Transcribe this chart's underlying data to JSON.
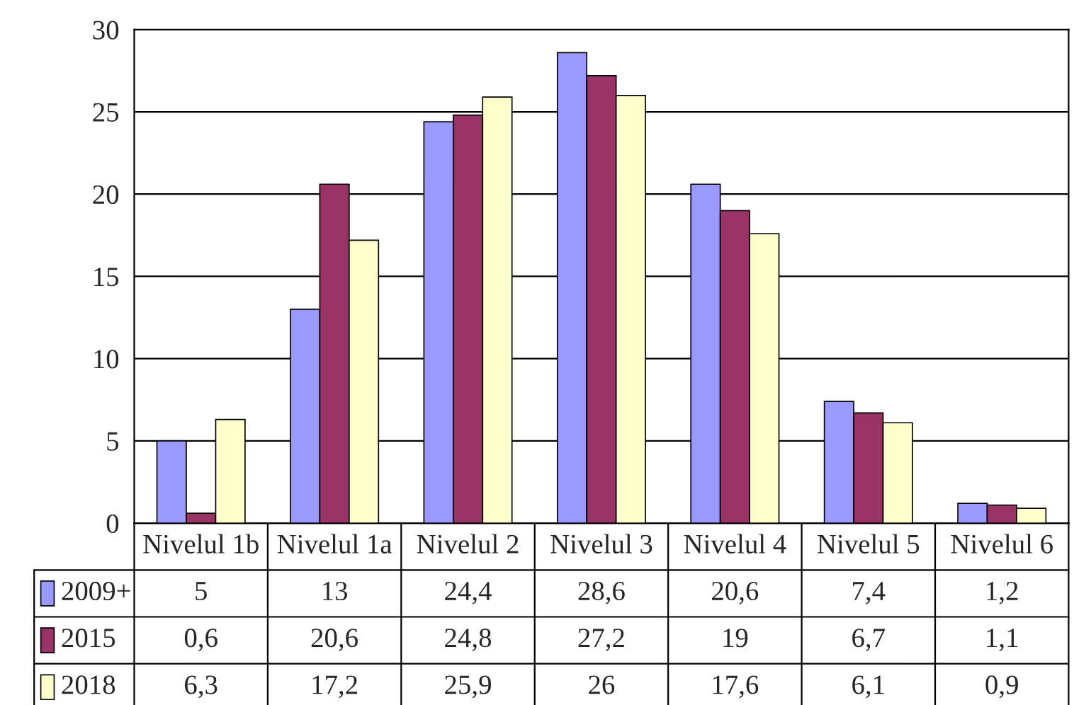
{
  "chart_data": {
    "type": "bar",
    "categories": [
      "Nivelul 1b",
      "Nivelul 1a",
      "Nivelul 2",
      "Nivelul 3",
      "Nivelul 4",
      "Nivelul 5",
      "Nivelul 6"
    ],
    "series": [
      {
        "name": "2009+",
        "color": "#9999ff",
        "values": [
          5,
          13,
          24.4,
          28.6,
          20.6,
          7.4,
          1.2
        ],
        "value_labels": [
          "5",
          "13",
          "24,4",
          "28,6",
          "20,6",
          "7,4",
          "1,2"
        ]
      },
      {
        "name": "2015",
        "color": "#993366",
        "values": [
          0.6,
          20.6,
          24.8,
          27.2,
          19,
          6.7,
          1.1
        ],
        "value_labels": [
          "0,6",
          "20,6",
          "24,8",
          "27,2",
          "19",
          "6,7",
          "1,1"
        ]
      },
      {
        "name": "2018",
        "color": "#ffffcc",
        "values": [
          6.3,
          17.2,
          25.9,
          26,
          17.6,
          6.1,
          0.9
        ],
        "value_labels": [
          "6,3",
          "17,2",
          "25,9",
          "26",
          "17,6",
          "6,1",
          "0,9"
        ]
      }
    ],
    "ylim": [
      0,
      30
    ],
    "yticks": [
      0,
      5,
      10,
      15,
      20,
      25,
      30
    ],
    "grid": "y",
    "legend": "bottom left"
  }
}
